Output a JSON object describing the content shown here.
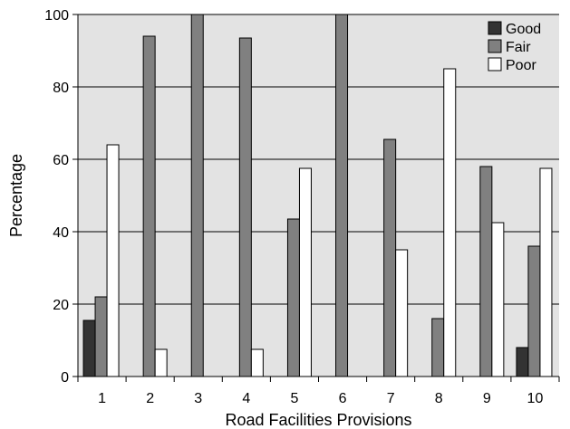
{
  "chart_data": {
    "type": "bar",
    "title": "",
    "xlabel": "Road Facilities Provisions",
    "ylabel": "Percentage",
    "categories": [
      "1",
      "2",
      "3",
      "4",
      "5",
      "6",
      "7",
      "8",
      "9",
      "10"
    ],
    "ylim": [
      0,
      100
    ],
    "yticks": [
      "0",
      "20",
      "40",
      "60",
      "80",
      "100"
    ],
    "grid": true,
    "legend_position": "top-right",
    "series": [
      {
        "name": "Good",
        "color": "#333333",
        "values": [
          15.5,
          0,
          0,
          0,
          0,
          0,
          0,
          0,
          0,
          8
        ]
      },
      {
        "name": "Fair",
        "color": "#808080",
        "values": [
          22,
          94,
          100,
          93.5,
          43.5,
          100,
          65.5,
          16,
          58,
          36
        ]
      },
      {
        "name": "Poor",
        "color": "#ffffff",
        "values": [
          64,
          7.5,
          0,
          7.5,
          57.5,
          0,
          35,
          85,
          42.5,
          57.5
        ]
      }
    ],
    "plot_background": "#e3e3e3"
  }
}
